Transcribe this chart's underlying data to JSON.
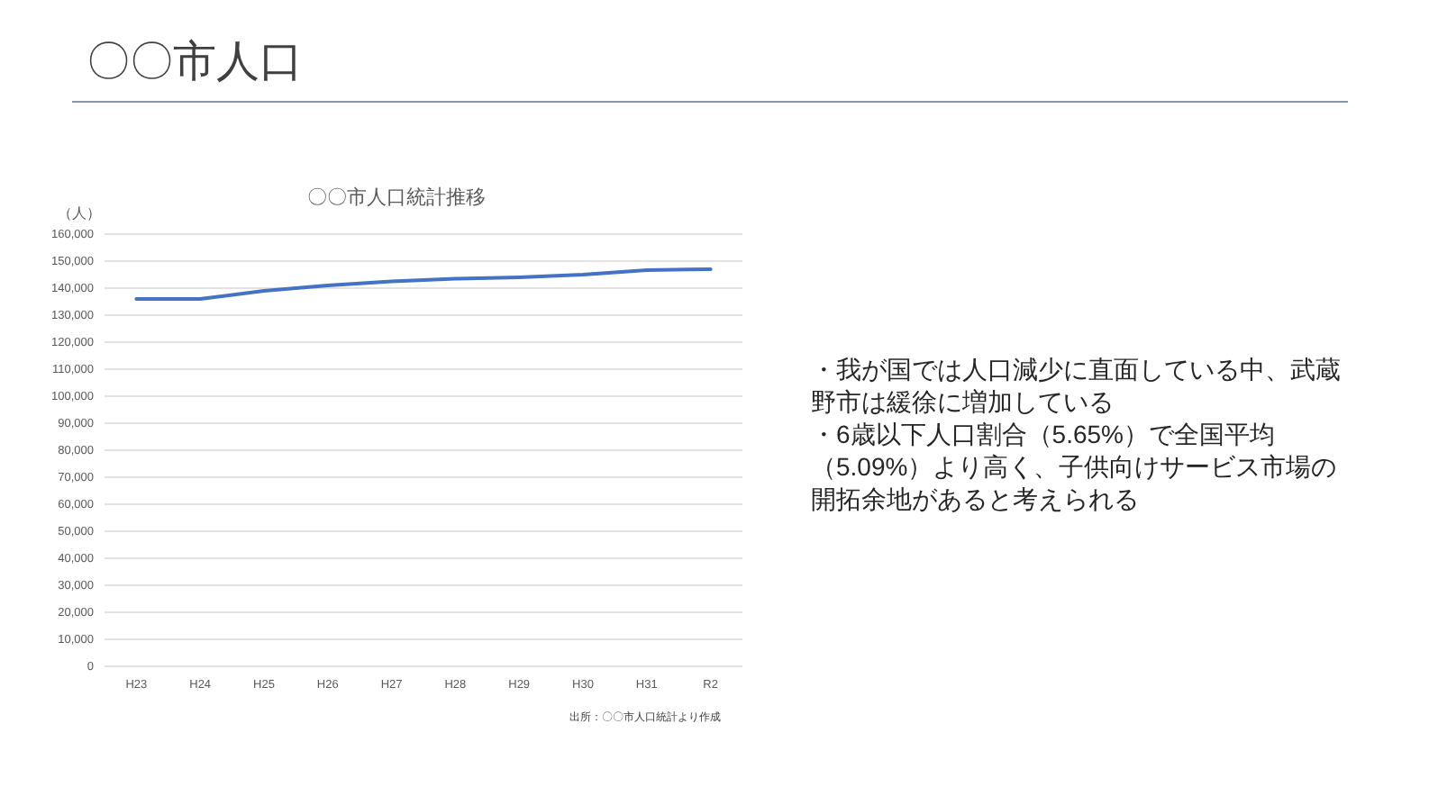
{
  "chart_data": [
    {
      "type": "other",
      "title": "〇〇市人口"
    },
    {
      "type": "line",
      "title": "〇〇市人口統計推移",
      "ylabel": "（人）",
      "annotations": [
        "出所：〇〇市人口統計より作成"
      ],
      "categories": [
        "H23",
        "H24",
        "H25",
        "H26",
        "H27",
        "H28",
        "H29",
        "H30",
        "H31",
        "R2"
      ],
      "series": [
        {
          "color": "#4472c4",
          "values": [
            136000,
            136000,
            139000,
            141000,
            142500,
            143500,
            144000,
            145000,
            146700,
            147000
          ]
        }
      ],
      "ylim": [
        0,
        160000
      ],
      "yticks": [
        0,
        {
          "value": 10000,
          "label": "10,000"
        },
        {
          "value": 20000,
          "label": "20,000"
        },
        {
          "value": 30000,
          "label": "30,000"
        },
        {
          "value": 40000,
          "label": "40,000"
        },
        {
          "value": 50000,
          "label": "50,000"
        },
        {
          "value": 60000,
          "label": "60,000"
        },
        {
          "value": 70000,
          "label": "70,000"
        },
        {
          "value": 80000,
          "label": "80,000"
        },
        {
          "value": 90000,
          "label": "90,000"
        },
        {
          "value": 100000,
          "label": "100,000"
        },
        {
          "value": 110000,
          "label": "110,000"
        },
        {
          "value": 120000,
          "label": "120,000"
        },
        {
          "value": 130000,
          "label": "130,000"
        },
        {
          "value": 140000,
          "label": "140,000"
        },
        {
          "value": 150000,
          "label": "150,000"
        },
        {
          "value": 160000,
          "label": "160,000"
        }
      ],
      "grid": "y"
    },
    {
      "type": "other",
      "annotations": [
        "・我が国では人口減少に直面している中、武蔵野市は緩徐に増加している",
        "・6歳以下人口割合（5.65%）で全国平均（5.09%）より高く、子供向けサービス市場の開拓余地があると考えられる"
      ]
    }
  ]
}
